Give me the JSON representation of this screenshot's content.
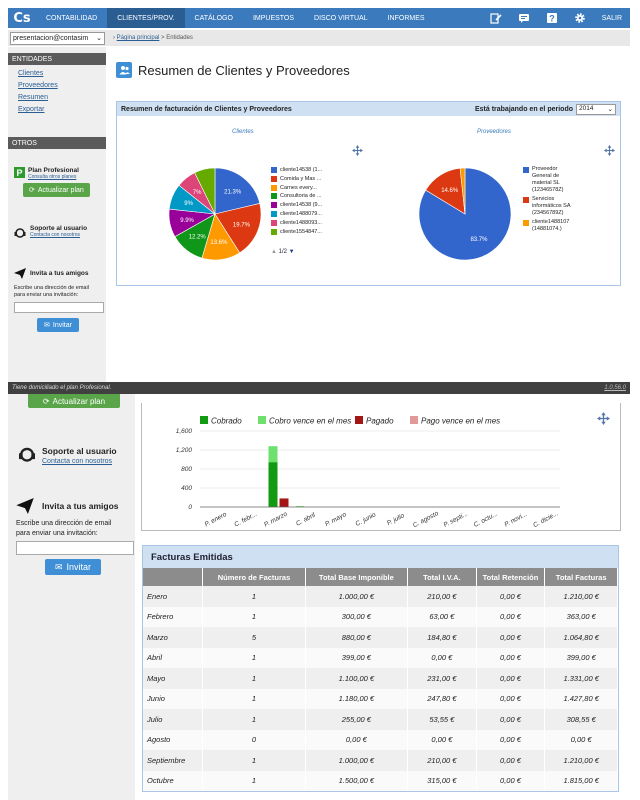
{
  "topnav": {
    "logo": "Cs",
    "items": [
      "CONTABILIDAD",
      "CLIENTES/PROV.",
      "CATÁLOGO",
      "IMPUESTOS",
      "DISCO VIRTUAL",
      "INFORMES"
    ],
    "active_index": 1,
    "icons": [
      "edit-icon",
      "chat-icon",
      "help-icon",
      "gear-icon"
    ],
    "logout_label": "SALIR"
  },
  "subbar": {
    "company": "presentacion@contasim",
    "breadcrumb_home": "Página principal",
    "breadcrumb_current": " > Entidades"
  },
  "sidebar": {
    "entities_heading": "ENTIDADES",
    "links": [
      "Clientes",
      "Proveedores",
      "Resumen",
      "Exportar"
    ],
    "others_heading": "OTROS",
    "plan_title": "Plan Profesional",
    "plan_link": "Consulta otros planes",
    "upgrade_button": "Actualizar plan",
    "support_title": "Soporte al usuario",
    "support_link": "Contacta con nosotros",
    "invite_title": "Invita a tus amigos",
    "invite_text_1": "Escribe una dirección de email",
    "invite_text_2": "para enviar una invitación:",
    "invite_button": "Invitar"
  },
  "main": {
    "title": "Resumen de Clientes y Proveedores",
    "panel_title": "Resumen de facturación de Clientes y Proveedores",
    "period_label": "Está trabajando en el periodo",
    "period_value": "2014",
    "clientes_title": "Clientes",
    "proveedores_title": "Proveedores",
    "pager": "1/2"
  },
  "status": {
    "text": "Tiene domiciliado el plan Profesional.",
    "version": "1.0.56.0"
  },
  "chart_data": [
    {
      "type": "pie",
      "title": "Clientes",
      "labels": [
        "cliente14538 (1...",
        "Comida y Mas ...",
        "Carnes every...",
        "Consultoria de ...",
        "cliente14538 (9...",
        "cliente1488079...",
        "cliente1488093...",
        "cliente1554847..."
      ],
      "values": [
        21.3,
        19.7,
        13.6,
        12.2,
        9.9,
        9.0,
        7.0,
        7.3
      ],
      "slice_labels": [
        "21.3%",
        "19.7%",
        "13.6%",
        "12.2%",
        "9.9%",
        "9%",
        "7%",
        ""
      ],
      "colors": [
        "#3366cc",
        "#dc3912",
        "#ff9900",
        "#109618",
        "#990099",
        "#0099c6",
        "#dd4477",
        "#66aa00"
      ]
    },
    {
      "type": "pie",
      "title": "Proveedores",
      "labels": [
        "Proveedor General de material SL (12346578Z)",
        "Servicios informáticos SA (23456789Z)",
        "cliente1488107 (14881074.)"
      ],
      "legend_lines": [
        [
          "Proveedor",
          "General de",
          "material SL",
          "(12346578Z)"
        ],
        [
          "Servicios",
          "informáticos SA",
          "(23456789Z)"
        ],
        [
          "cliente1488107",
          "(14881074.)"
        ]
      ],
      "values": [
        83.7,
        14.6,
        1.7
      ],
      "slice_labels": [
        "83.7%",
        "14.6%",
        ""
      ],
      "colors": [
        "#3366cc",
        "#dc3912",
        "#ff9900"
      ]
    },
    {
      "type": "bar",
      "series": [
        {
          "name": "Cobrado",
          "color": "#139a13"
        },
        {
          "name": "Cobro vence en el mes",
          "color": "#6ee06e"
        },
        {
          "name": "Pagado",
          "color": "#a41515"
        },
        {
          "name": "Pago vence en el mes",
          "color": "#e09a9a"
        }
      ],
      "ticks_y": [
        "1,600",
        "1,200",
        "800",
        "400",
        "0"
      ],
      "ylim": [
        0,
        1600
      ],
      "x_labels": [
        "P. enero",
        "C. febr...",
        "P. marzo",
        "C. abril",
        "P. mayo",
        "C. junio",
        "P. julio",
        "C. agosto",
        "P. septi...",
        "C. octu...",
        "P. novi...",
        "C. dicie..."
      ],
      "bars": [
        {
          "category": "marzo",
          "series": "Cobrado",
          "value": 940
        },
        {
          "category": "marzo",
          "series": "Cobro vence en el mes",
          "value": 1280
        },
        {
          "category": "marzo",
          "series": "Pagado",
          "value": 180
        },
        {
          "category": "abril",
          "series": "Cobro vence en el mes",
          "value": 20
        }
      ]
    }
  ],
  "table": {
    "title": "Facturas Emitidas",
    "columns": [
      "",
      "Número de Facturas",
      "Total Base Imponible",
      "Total I.V.A.",
      "Total Retención",
      "Total Facturas"
    ],
    "rows": [
      [
        "Enero",
        "1",
        "1.000,00 €",
        "210,00 €",
        "0,00 €",
        "1.210,00 €"
      ],
      [
        "Febrero",
        "1",
        "300,00 €",
        "63,00 €",
        "0,00 €",
        "363,00 €"
      ],
      [
        "Marzo",
        "5",
        "880,00 €",
        "184,80 €",
        "0,00 €",
        "1.064,80 €"
      ],
      [
        "Abril",
        "1",
        "399,00 €",
        "0,00 €",
        "0,00 €",
        "399,00 €"
      ],
      [
        "Mayo",
        "1",
        "1.100,00 €",
        "231,00 €",
        "0,00 €",
        "1.331,00 €"
      ],
      [
        "Junio",
        "1",
        "1.180,00 €",
        "247,80 €",
        "0,00 €",
        "1.427,80 €"
      ],
      [
        "Julio",
        "1",
        "255,00 €",
        "53,55 €",
        "0,00 €",
        "308,55 €"
      ],
      [
        "Agosto",
        "0",
        "0,00 €",
        "0,00 €",
        "0,00 €",
        "0,00 €"
      ],
      [
        "Septiembre",
        "1",
        "1.000,00 €",
        "210,00 €",
        "0,00 €",
        "1.210,00 €"
      ],
      [
        "Octubre",
        "1",
        "1.500,00 €",
        "315,00 €",
        "0,00 €",
        "1.815,00 €"
      ]
    ]
  }
}
